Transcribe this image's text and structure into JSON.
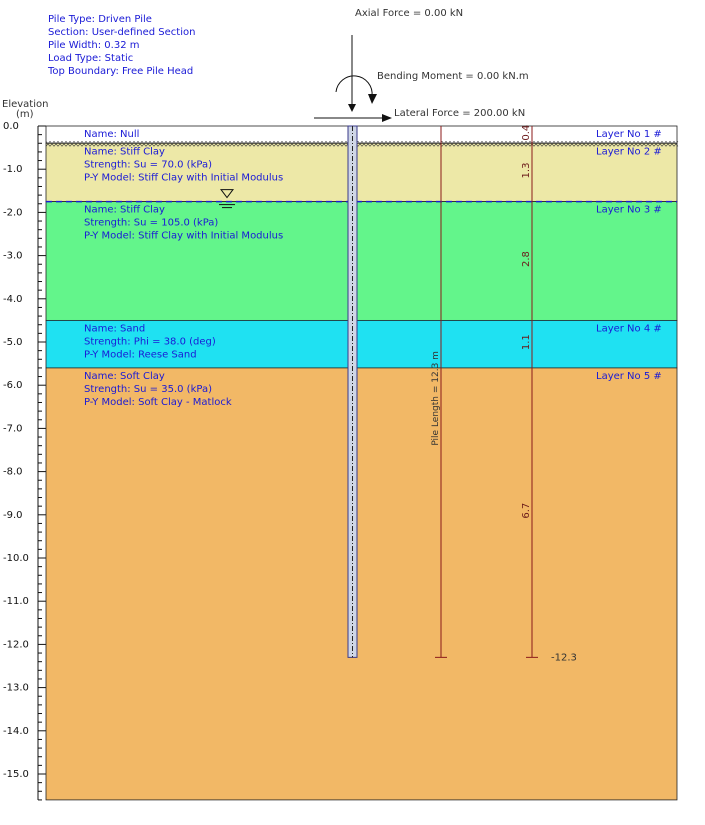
{
  "header": {
    "info_lines": [
      "Pile Type: Driven Pile",
      "Section: User-defined Section",
      "Pile Width:   0.32 m",
      "Load Type: Static",
      "Top Boundary: Free Pile Head"
    ]
  },
  "loads": {
    "axial": "Axial Force = 0.00 kN",
    "moment": "Bending Moment = 0.00 kN.m",
    "lateral": "Lateral Force = 200.00 kN"
  },
  "axis": {
    "title": "Elevation",
    "unit": "(m)",
    "min": 0.0,
    "max": 15.0,
    "ticks": [
      "0.0",
      "-1.0",
      "-2.0",
      "-3.0",
      "-4.0",
      "-5.0",
      "-6.0",
      "-7.0",
      "-8.0",
      "-9.0",
      "-10.0",
      "-11.0",
      "-12.0",
      "-13.0",
      "-14.0",
      "-15.0"
    ]
  },
  "layers": [
    {
      "top": 0.0,
      "bottom": 0.4,
      "color": "#ffffff",
      "name": "Name: Null",
      "strength": "",
      "py": "",
      "label": "Layer No   1 #",
      "thickness": "0.4"
    },
    {
      "top": 0.4,
      "bottom": 1.75,
      "color": "#ede8a7",
      "name": "Name: Stiff Clay",
      "strength": "Strength: Su =  70.0 (kPa)",
      "py": "P-Y Model: Stiff Clay with Initial Modulus",
      "label": "Layer No   2 #",
      "thickness": "1.3"
    },
    {
      "top": 1.75,
      "bottom": 4.5,
      "color": "#63f58b",
      "name": "Name: Stiff Clay",
      "strength": "Strength: Su = 105.0 (kPa)",
      "py": "P-Y Model: Stiff Clay with Initial Modulus",
      "label": "Layer No   3 #",
      "thickness": "2.8"
    },
    {
      "top": 4.5,
      "bottom": 5.6,
      "color": "#1fe1f2",
      "name": "Name: Sand",
      "strength": "Strength: Phi =  38.0 (deg)",
      "py": "P-Y Model: Reese Sand",
      "label": "Layer No   4 #",
      "thickness": "1.1"
    },
    {
      "top": 5.6,
      "bottom": 15.6,
      "color": "#f2b866",
      "name": "Name: Soft Clay",
      "strength": "Strength: Su =  35.0 (kPa)",
      "py": "P-Y Model: Soft Clay - Matlock",
      "label": "Layer No   5 #",
      "thickness": "6.7"
    }
  ],
  "water_table": 1.75,
  "pile": {
    "length_value": 12.3,
    "length_label": "Pile Length = 12.3 m",
    "tip_label": "-12.3"
  },
  "colors": {
    "text_blue": "#1a1ad6",
    "dim_line": "#8b1a1a",
    "water": "#1a1ad6"
  }
}
